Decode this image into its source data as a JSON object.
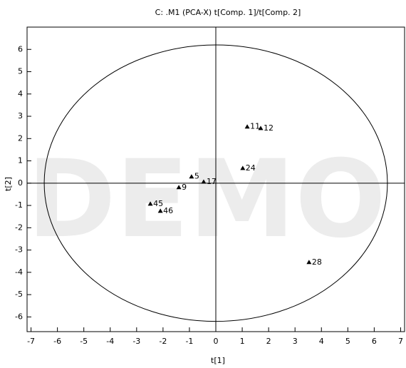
{
  "chart_data": {
    "type": "scatter",
    "title": "C:  .M1 (PCA-X)    t[Comp. 1]/t[Comp. 2]",
    "watermark": "DEMO",
    "x_label": "t[1]",
    "y_label": "t[2]",
    "xlim": [
      -7.15,
      7.15
    ],
    "ylim": [
      -6.66,
      7.0
    ],
    "xticks": [
      -7,
      -6,
      -5,
      -4,
      -3,
      -2,
      -1,
      0,
      1,
      2,
      3,
      4,
      5,
      6,
      7
    ],
    "yticks": [
      -6,
      -5,
      -4,
      -3,
      -2,
      -1,
      0,
      1,
      2,
      3,
      4,
      5,
      6
    ],
    "ellipse": {
      "rx": 6.5,
      "ry": 6.2
    },
    "color": "#000000",
    "labels": [
      "11",
      "12",
      "24",
      "5",
      "17",
      "9",
      "45",
      "46",
      "28"
    ],
    "x": [
      1.19,
      1.7,
      1.02,
      -0.92,
      -0.46,
      -1.4,
      -2.48,
      -2.1,
      3.53
    ],
    "values": [
      2.53,
      2.46,
      0.67,
      0.29,
      0.06,
      -0.19,
      -0.93,
      -1.25,
      -3.55
    ]
  }
}
